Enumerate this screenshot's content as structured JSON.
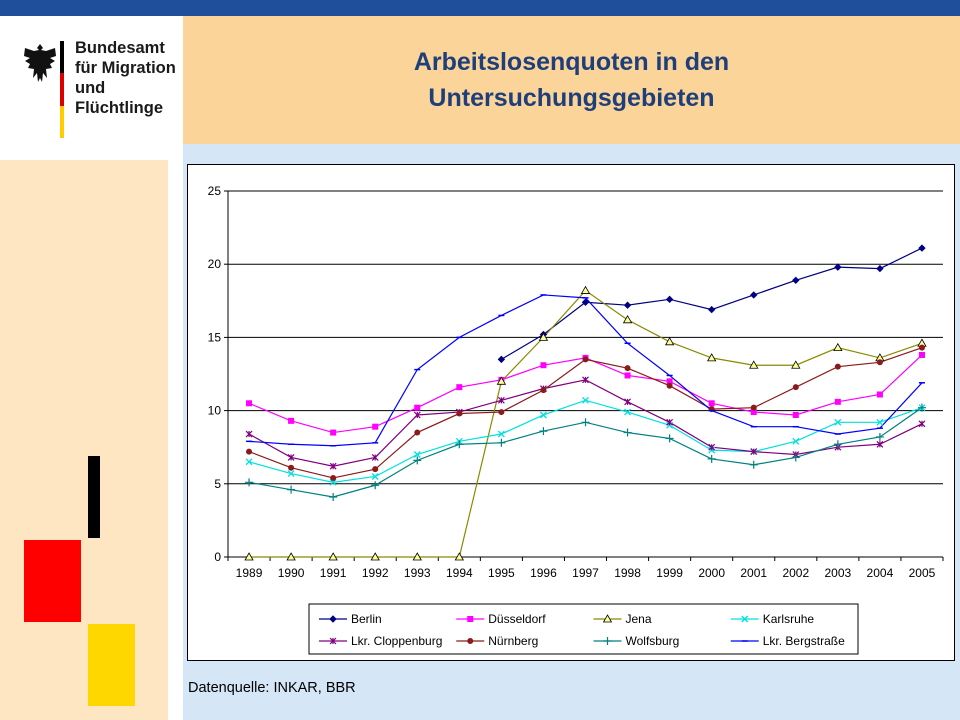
{
  "logo": {
    "text": "Bundesamt\nfür Migration\nund Flüchtlinge",
    "emblem": "federal-eagle-icon",
    "stripe_colors": [
      "#000000",
      "#dd0000",
      "#ffcc00"
    ]
  },
  "title": "Arbeitslosenquoten in den\nUntersuchungsgebieten",
  "source": "Datenquelle: INKAR, BBR",
  "colors": {
    "topbar": "#1f4e9a",
    "title_bg": "#fbd49a",
    "content_bg": "#d5e6f6",
    "left_panel": "#fde6c1",
    "title_text": "#1e3f7a"
  },
  "chart_data": {
    "type": "line",
    "title": "",
    "xlabel": "",
    "ylabel": "",
    "ylim": [
      0,
      25
    ],
    "yticks": [
      "0",
      "5",
      "10",
      "15",
      "20",
      "25"
    ],
    "grid": "horizontal",
    "legend_position": "bottom",
    "x": [
      "1989",
      "1990",
      "1991",
      "1992",
      "1993",
      "1994",
      "1995",
      "1996",
      "1997",
      "1998",
      "1999",
      "2000",
      "2001",
      "2002",
      "2003",
      "2004",
      "2005"
    ],
    "series": [
      {
        "name": "Berlin",
        "color": "#000080",
        "marker": "diamond",
        "values": [
          null,
          null,
          null,
          null,
          null,
          null,
          13.5,
          15.2,
          17.4,
          17.2,
          17.6,
          16.9,
          17.9,
          18.9,
          19.8,
          19.7,
          21.1
        ]
      },
      {
        "name": "Düsseldorf",
        "color": "#ff00ff",
        "marker": "square",
        "values": [
          10.5,
          9.3,
          8.5,
          8.9,
          10.2,
          11.6,
          12.1,
          13.1,
          13.6,
          12.4,
          12.0,
          10.5,
          9.9,
          9.7,
          10.6,
          11.1,
          13.8
        ]
      },
      {
        "name": "Jena",
        "color": "#8a8a00",
        "marker": "triangle",
        "values": [
          0,
          0,
          0,
          0,
          0,
          0,
          12.0,
          15.0,
          18.2,
          16.2,
          14.7,
          13.6,
          13.1,
          13.1,
          14.3,
          13.6,
          14.6
        ]
      },
      {
        "name": "Karlsruhe",
        "color": "#00e0e0",
        "marker": "x",
        "values": [
          6.5,
          5.7,
          5.1,
          5.5,
          7.0,
          7.9,
          8.4,
          9.7,
          10.7,
          9.9,
          9.0,
          7.3,
          7.2,
          7.9,
          9.2,
          9.2,
          10.2
        ]
      },
      {
        "name": "Lkr. Cloppenburg",
        "color": "#800080",
        "marker": "asterisk",
        "values": [
          8.4,
          6.8,
          6.2,
          6.8,
          9.7,
          9.9,
          10.7,
          11.5,
          12.1,
          10.6,
          9.2,
          7.5,
          7.2,
          7.0,
          7.5,
          7.7,
          9.1
        ]
      },
      {
        "name": "Nürnberg",
        "color": "#8b1a1a",
        "marker": "circle",
        "values": [
          7.2,
          6.1,
          5.4,
          6.0,
          8.5,
          9.8,
          9.9,
          11.4,
          13.5,
          12.9,
          11.7,
          10.1,
          10.2,
          11.6,
          13.0,
          13.3,
          14.3
        ]
      },
      {
        "name": "Wolfsburg",
        "color": "#008080",
        "marker": "plus",
        "values": [
          5.1,
          4.6,
          4.1,
          4.9,
          6.6,
          7.7,
          7.8,
          8.6,
          9.2,
          8.5,
          8.1,
          6.7,
          6.3,
          6.8,
          7.7,
          8.2,
          10.2
        ]
      },
      {
        "name": "Lkr. Bergstraße",
        "color": "#0000ff",
        "marker": "dash",
        "values": [
          7.9,
          7.7,
          7.6,
          7.8,
          12.8,
          15.0,
          16.5,
          17.9,
          17.7,
          14.6,
          12.4,
          10.0,
          8.9,
          8.9,
          8.4,
          8.8,
          11.9
        ]
      }
    ]
  }
}
